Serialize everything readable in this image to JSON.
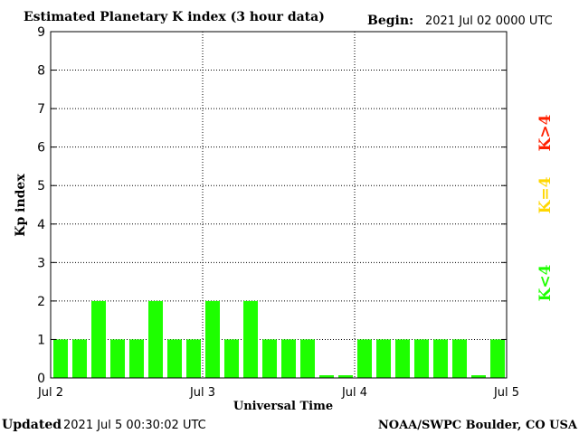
{
  "chart_data": {
    "type": "bar",
    "title": "Estimated Planetary K index (3 hour data)",
    "begin_label": "Begin:",
    "begin_value": "2021 Jul 02 0000 UTC",
    "xlabel": "Universal Time",
    "ylabel": "Kp index",
    "ylim": [
      0,
      9
    ],
    "yticks": [
      "0",
      "1",
      "2",
      "3",
      "4",
      "5",
      "6",
      "7",
      "8",
      "9"
    ],
    "xticks": [
      "Jul 2",
      "Jul 3",
      "Jul 4",
      "Jul 5"
    ],
    "grid": true,
    "values": [
      1,
      1,
      2,
      1,
      1,
      2,
      1,
      1,
      2,
      1,
      2,
      1,
      1,
      1,
      0,
      0,
      1,
      1,
      1,
      1,
      1,
      1,
      0,
      1
    ],
    "bar_color": "#1eff00",
    "legend": [
      {
        "label": "K<4",
        "color": "#1eff00"
      },
      {
        "label": "K=4",
        "color": "#ffd700"
      },
      {
        "label": "K>4",
        "color": "#ff2000"
      }
    ]
  },
  "footer": {
    "updated_label": "Updated",
    "updated_value": "2021 Jul  5 00:30:02 UTC",
    "credit": "NOAA/SWPC Boulder, CO USA"
  }
}
